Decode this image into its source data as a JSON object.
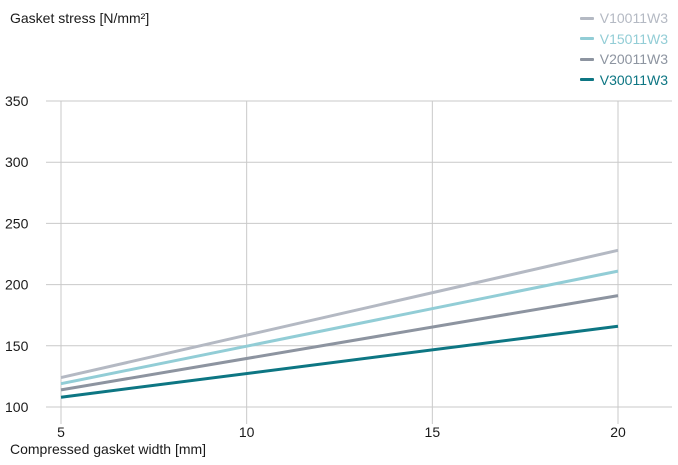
{
  "chart_data": {
    "type": "line",
    "ylabel": "Gasket stress [N/mm²]",
    "xlabel": "Compressed gasket width [mm]",
    "x": [
      5,
      20
    ],
    "xlim": [
      5,
      20
    ],
    "ylim": [
      100,
      375
    ],
    "xticks": [
      "5",
      "10",
      "15",
      "20"
    ],
    "yticks": [
      "100",
      "150",
      "200",
      "250",
      "300",
      "350"
    ],
    "grid": true,
    "legend_position": "top-right",
    "series": [
      {
        "name": "V10011W3",
        "color": "#b4b9c3",
        "values": [
          124,
          228
        ]
      },
      {
        "name": "V15011W3",
        "color": "#92cdd6",
        "values": [
          119,
          211
        ]
      },
      {
        "name": "V20011W3",
        "color": "#8d94a0",
        "values": [
          114,
          191
        ]
      },
      {
        "name": "V30011W3",
        "color": "#0d7683",
        "values": [
          108,
          166
        ]
      }
    ]
  }
}
